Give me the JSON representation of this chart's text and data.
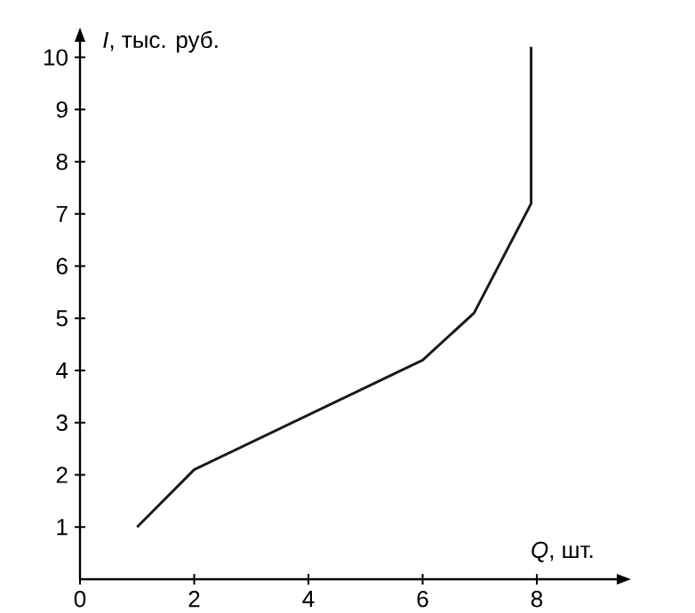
{
  "chart_data": {
    "type": "line",
    "xlabel": "*Q*, шт.",
    "ylabel": "*I*, тыс. руб.",
    "x": [
      1,
      2,
      4,
      6,
      6.9,
      7.9,
      7.9
    ],
    "values": [
      1,
      2.1,
      3.15,
      4.2,
      5.1,
      7.2,
      10.2
    ],
    "color": "#1a1a1a",
    "marker": "none",
    "line_style": "solid",
    "xlim": [
      0,
      9.4
    ],
    "ylim": [
      0,
      10.3
    ],
    "xticks": [
      0,
      2,
      4,
      6,
      8
    ],
    "yticks": [
      1,
      2,
      3,
      4,
      5,
      6,
      7,
      8,
      9,
      10
    ]
  }
}
